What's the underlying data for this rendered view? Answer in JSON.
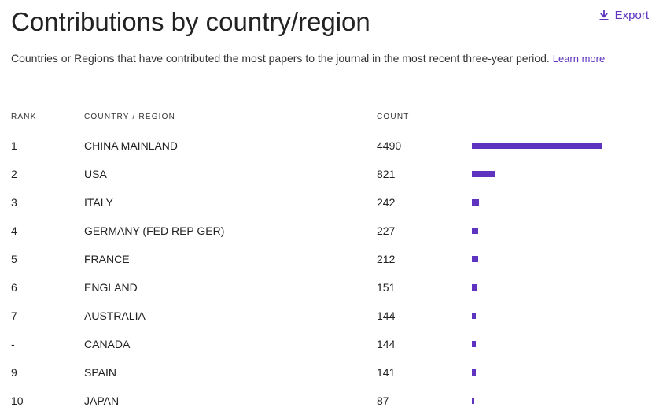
{
  "header": {
    "title": "Contributions by country/region",
    "export_label": "Export",
    "export_icon": "download-icon"
  },
  "description": {
    "text": "Countries or Regions that have contributed the most papers to the journal in the most recent three-year period.",
    "link_label": "Learn more"
  },
  "table": {
    "columns": {
      "rank": "RANK",
      "country": "COUNTRY / REGION",
      "count": "COUNT"
    },
    "bar_color": "#5e33bf",
    "rows": [
      {
        "rank": "1",
        "country": "CHINA MAINLAND",
        "count": "4490",
        "value": 4490
      },
      {
        "rank": "2",
        "country": "USA",
        "count": "821",
        "value": 821
      },
      {
        "rank": "3",
        "country": "ITALY",
        "count": "242",
        "value": 242
      },
      {
        "rank": "4",
        "country": "GERMANY (FED REP GER)",
        "count": "227",
        "value": 227
      },
      {
        "rank": "5",
        "country": "FRANCE",
        "count": "212",
        "value": 212
      },
      {
        "rank": "6",
        "country": "ENGLAND",
        "count": "151",
        "value": 151
      },
      {
        "rank": "7",
        "country": "AUSTRALIA",
        "count": "144",
        "value": 144
      },
      {
        "rank": "-",
        "country": "CANADA",
        "count": "144",
        "value": 144
      },
      {
        "rank": "9",
        "country": "SPAIN",
        "count": "141",
        "value": 141
      },
      {
        "rank": "10",
        "country": "JAPAN",
        "count": "87",
        "value": 87
      }
    ]
  }
}
